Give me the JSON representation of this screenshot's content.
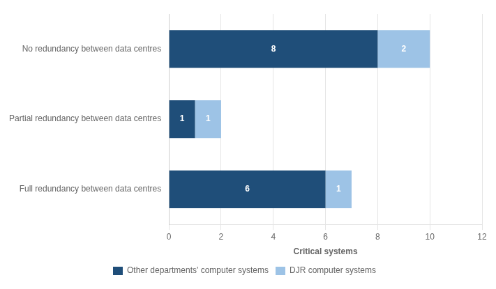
{
  "chart_data": {
    "type": "bar",
    "orientation": "horizontal",
    "stacked": true,
    "categories": [
      "No redundancy between data centres",
      "Partial redundancy between data centres",
      "Full redundancy between data centres"
    ],
    "series": [
      {
        "name": "Other departments' computer systems",
        "color": "#1F4E79",
        "values": [
          8,
          1,
          6
        ]
      },
      {
        "name": "DJR computer systems",
        "color": "#9DC3E6",
        "values": [
          2,
          1,
          1
        ]
      }
    ],
    "xlabel": "Critical systems",
    "xlim": [
      0,
      12
    ],
    "xticks": [
      0,
      2,
      4,
      6,
      8,
      10,
      12
    ],
    "grid": true,
    "legend": "bottom",
    "data_labels": true
  }
}
